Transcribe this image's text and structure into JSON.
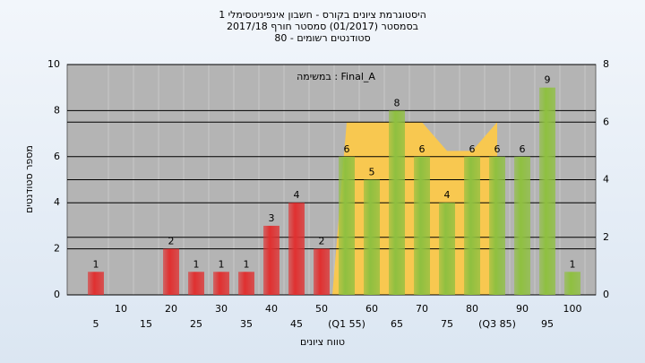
{
  "chart_data": {
    "type": "bar",
    "title": "היסטוגרמת ציונים בקורס - חשבון אינפיניטסימלי 1",
    "subtitle": "בסמסטר (01/2017)  סמסטר חורף 2017/18",
    "subtitle2": "סטודנטים רשומים - 80",
    "annotation": "במשימה : Final_A",
    "y_label": "מספר סטודנטים",
    "x_label": "טווח ציונים",
    "categories": [
      "5",
      "10",
      "15",
      "20",
      "25",
      "30",
      "35",
      "40",
      "45",
      "50",
      "(Q1 55)",
      "60",
      "65",
      "70",
      "75",
      "80",
      "(Q3 85)",
      "90",
      "95",
      "100"
    ],
    "values": [
      1,
      0,
      0,
      2,
      1,
      1,
      1,
      3,
      4,
      2,
      6,
      5,
      8,
      6,
      4,
      6,
      6,
      6,
      9,
      1
    ],
    "colors": [
      "#e03030",
      "#e03030",
      "#e03030",
      "#e03030",
      "#e03030",
      "#e03030",
      "#e03030",
      "#e03030",
      "#e03030",
      "#e03030",
      "#8fc040",
      "#8fc040",
      "#8fc040",
      "#8fc040",
      "#8fc040",
      "#8fc040",
      "#8fc040",
      "#8fc040",
      "#8fc040",
      "#8fc040"
    ],
    "area": {
      "color": "#f8c850",
      "axis": "y2",
      "values": [
        null,
        null,
        null,
        null,
        null,
        null,
        null,
        null,
        null,
        null,
        6,
        6,
        6,
        6,
        5,
        5,
        6,
        null,
        null,
        null
      ]
    },
    "ylim": [
      0,
      10
    ],
    "yticks": [
      0,
      2,
      4,
      6,
      8,
      10
    ],
    "y2lim": [
      0,
      8
    ],
    "y2ticks": [
      0,
      2,
      4,
      6,
      8
    ],
    "grid": true
  }
}
